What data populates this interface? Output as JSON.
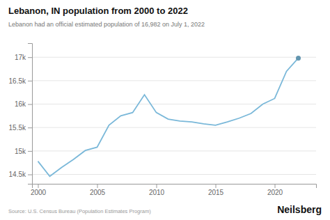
{
  "chart_data": {
    "type": "line",
    "title": "Lebanon, IN population from 2000 to 2022",
    "subtitle": "Lebanon had an official estimated population of 16,982 on July 1, 2022",
    "annotations": [
      "Source: U.S. Census Bureau (Population Estimates Program)",
      "Neilsberg"
    ],
    "x": [
      2000,
      2001,
      2002,
      2003,
      2004,
      2005,
      2006,
      2007,
      2008,
      2009,
      2010,
      2011,
      2012,
      2013,
      2014,
      2015,
      2016,
      2017,
      2018,
      2019,
      2020,
      2021,
      2022
    ],
    "values": [
      14780,
      14460,
      14650,
      14820,
      15010,
      15080,
      15550,
      15750,
      15820,
      16200,
      15820,
      15680,
      15640,
      15620,
      15580,
      15550,
      15620,
      15700,
      15800,
      16000,
      16120,
      16700,
      16982
    ],
    "color": "#7ab8d9",
    "xlim": [
      1999.5,
      2023.5
    ],
    "xticks": [
      2000,
      2005,
      2010,
      2015,
      2020
    ],
    "ylim": [
      14300,
      17300
    ],
    "yticks": [
      {
        "value": 14500,
        "label": "14.5k"
      },
      {
        "value": 15000,
        "label": "15k"
      },
      {
        "value": 15500,
        "label": "15.5k"
      },
      {
        "value": 16000,
        "label": "16k"
      },
      {
        "value": 16500,
        "label": "16.5k"
      },
      {
        "value": 17000,
        "label": "17k"
      }
    ],
    "grid": true
  }
}
